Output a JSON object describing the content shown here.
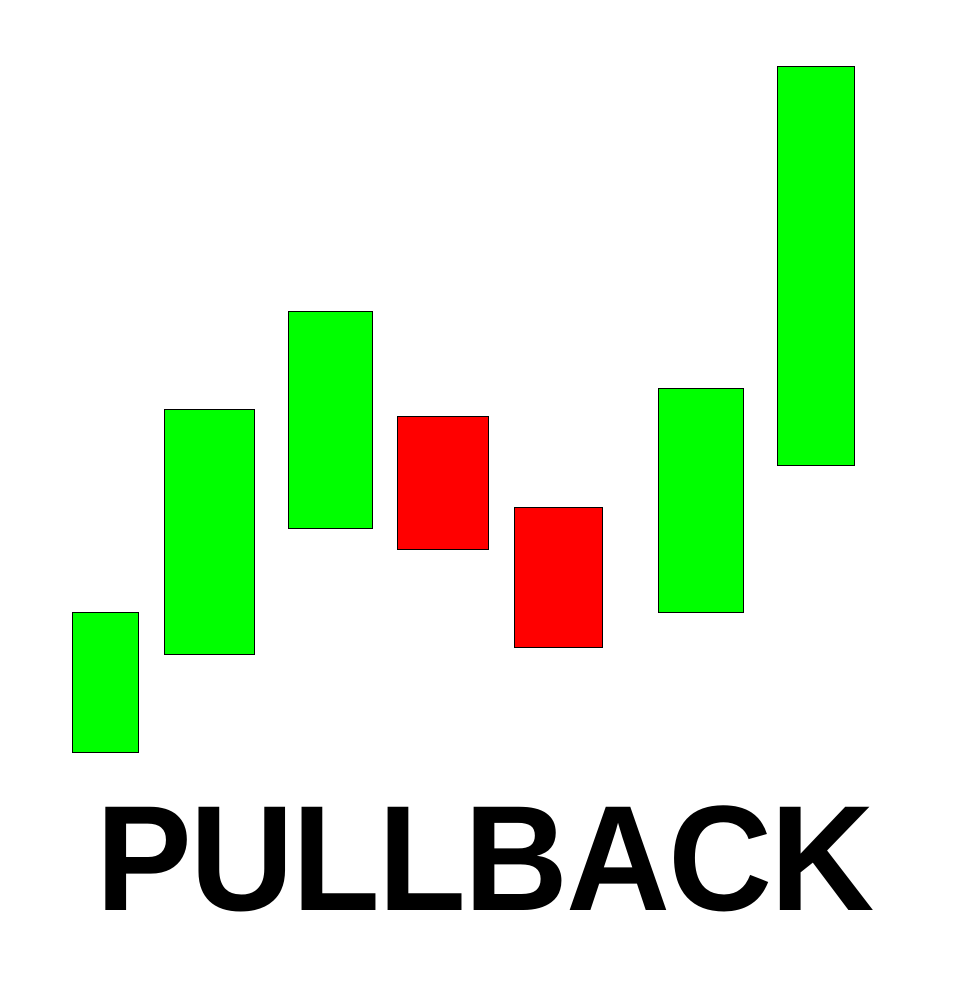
{
  "chart_data": {
    "type": "bar",
    "title": "PULLBACK",
    "xlabel": "",
    "ylabel": "",
    "grid": false,
    "legend": "none",
    "ylim": [
      0,
      100
    ],
    "candles": [
      {
        "open": 23,
        "close": 43,
        "direction": "up"
      },
      {
        "open": 37,
        "close": 72,
        "direction": "up"
      },
      {
        "open": 55,
        "close": 86,
        "direction": "up"
      },
      {
        "open": 71,
        "close": 52,
        "direction": "down"
      },
      {
        "open": 58,
        "close": 38,
        "direction": "down"
      },
      {
        "open": 43,
        "close": 75,
        "direction": "up"
      },
      {
        "open": 64,
        "close": 121,
        "direction": "up"
      }
    ]
  },
  "colors": {
    "up": "#00ff00",
    "down": "#ff0000",
    "border": "#000000",
    "background": "#ffffff",
    "title": "#000000"
  }
}
